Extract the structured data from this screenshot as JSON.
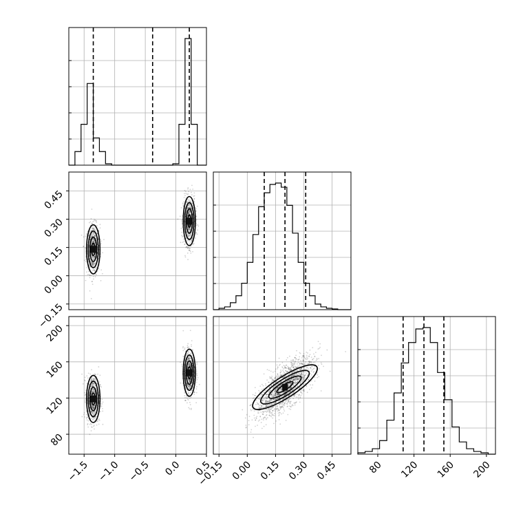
{
  "chart_data": {
    "type": "scatter",
    "title": "",
    "parameters": [
      {
        "id": "p0",
        "ticks": [
          -1.5,
          -1.0,
          -0.5,
          0.0,
          0.5
        ],
        "tick_labels": [
          "−1.5",
          "−1.0",
          "−0.5",
          "0.0",
          "0.5"
        ],
        "range": [
          -1.75,
          0.5
        ]
      },
      {
        "id": "p1",
        "ticks": [
          -0.15,
          0.0,
          0.15,
          0.3,
          0.45
        ],
        "tick_labels": [
          "−0.15",
          "0.00",
          "0.15",
          "0.30",
          "0.45"
        ],
        "range": [
          -0.18,
          0.55
        ]
      },
      {
        "id": "p2",
        "ticks": [
          80,
          120,
          160,
          200
        ],
        "tick_labels": [
          "80",
          "120",
          "160",
          "200"
        ],
        "range": [
          58,
          210
        ]
      }
    ],
    "quantiles": [
      [
        -1.35,
        -0.38,
        0.22
      ],
      [
        0.09,
        0.2,
        0.31
      ],
      [
        108,
        131,
        153
      ]
    ],
    "histograms": [
      {
        "param": "p0",
        "edges": [
          -1.75,
          -1.65,
          -1.55,
          -1.45,
          -1.35,
          -1.25,
          -1.15,
          -1.05,
          -0.95,
          -0.85,
          -0.75,
          -0.65,
          -0.55,
          -0.45,
          -0.35,
          -0.25,
          -0.15,
          -0.05,
          0.05,
          0.15,
          0.25,
          0.35,
          0.45,
          0.5
        ],
        "counts": [
          0,
          0.1,
          0.3,
          0.6,
          0.2,
          0.1,
          0.01,
          0,
          0,
          0,
          0,
          0,
          0,
          0,
          0,
          0,
          0,
          0.01,
          0.3,
          0.93,
          0.3,
          0,
          0
        ]
      },
      {
        "param": "p1",
        "edges": [
          -0.18,
          -0.15,
          -0.12,
          -0.09,
          -0.06,
          -0.03,
          0.0,
          0.03,
          0.06,
          0.09,
          0.12,
          0.15,
          0.18,
          0.21,
          0.24,
          0.27,
          0.3,
          0.33,
          0.36,
          0.39,
          0.42,
          0.45,
          0.48,
          0.51,
          0.55
        ],
        "counts": [
          0,
          0.01,
          0.02,
          0.05,
          0.1,
          0.19,
          0.34,
          0.54,
          0.74,
          0.84,
          0.9,
          0.91,
          0.88,
          0.75,
          0.55,
          0.34,
          0.19,
          0.1,
          0.04,
          0.02,
          0.01,
          0.005,
          0.0,
          0.0
        ]
      },
      {
        "param": "p2",
        "edges": [
          58,
          66,
          74,
          82,
          90,
          98,
          106,
          114,
          122,
          130,
          138,
          146,
          154,
          162,
          170,
          178,
          186,
          194,
          202,
          210
        ],
        "counts": [
          0.01,
          0.02,
          0.04,
          0.1,
          0.25,
          0.45,
          0.67,
          0.82,
          0.92,
          0.93,
          0.82,
          0.6,
          0.4,
          0.2,
          0.09,
          0.04,
          0.02,
          0.01,
          0
        ]
      }
    ],
    "clusters": [
      {
        "x": "p0",
        "y": "p1",
        "modes": [
          {
            "mx": -1.35,
            "my": 0.14,
            "sx": 0.055,
            "sy": 0.065,
            "rho": 0.0,
            "n": 700
          },
          {
            "mx": 0.22,
            "my": 0.29,
            "sx": 0.05,
            "sy": 0.065,
            "rho": 0.0,
            "n": 700
          }
        ]
      },
      {
        "x": "p0",
        "y": "p2",
        "modes": [
          {
            "mx": -1.35,
            "my": 119,
            "sx": 0.055,
            "sy": 13,
            "rho": 0.0,
            "n": 700
          },
          {
            "mx": 0.22,
            "my": 148,
            "sx": 0.05,
            "sy": 13,
            "rho": 0.0,
            "n": 700
          }
        ]
      },
      {
        "x": "p1",
        "y": "p2",
        "modes": [
          {
            "mx": 0.2,
            "my": 132,
            "sx": 0.075,
            "sy": 16,
            "rho": 0.72,
            "n": 1800
          }
        ]
      }
    ]
  }
}
